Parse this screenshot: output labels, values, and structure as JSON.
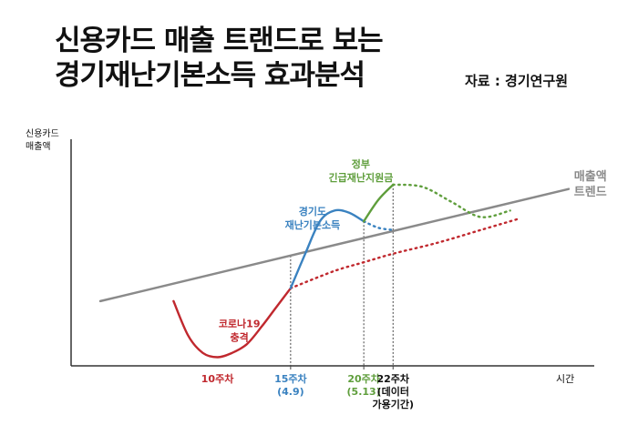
{
  "title_lines": [
    "신용카드 매출 트랜드로 보는",
    "경기재난기본소득 효과분석"
  ],
  "source": "자료 : 경기연구원",
  "colors": {
    "trend": "#8a8a8a",
    "covid": "#c0282e",
    "gyeonggi": "#3a82c0",
    "government": "#5f9e3c",
    "axis": "#333333",
    "text": "#111111"
  },
  "chart_data": {
    "type": "line",
    "title": "",
    "ylabel": [
      "신용카드",
      "매출액"
    ],
    "xlabel": "시간",
    "xlim": [
      0,
      35
    ],
    "ylim": [
      0,
      100
    ],
    "series": [
      {
        "name": "매출액 트렌드",
        "color": "#8a8a8a",
        "style": "solid",
        "x": [
          2,
          34
        ],
        "y": [
          30,
          82
        ]
      },
      {
        "name": "",
        "color": "#c0282e",
        "style": "solid",
        "x": [
          7,
          8,
          9,
          10,
          11,
          12,
          13,
          14,
          15
        ],
        "y": [
          30,
          14,
          6,
          4,
          6,
          10,
          18,
          27,
          36
        ]
      },
      {
        "name": "",
        "color": "#c0282e",
        "style": "dotted",
        "x": [
          15,
          18,
          20,
          22,
          25,
          28,
          30.5
        ],
        "y": [
          36,
          44,
          48,
          52,
          57,
          63,
          68
        ]
      },
      {
        "name": "",
        "color": "#3a82c0",
        "style": "solid",
        "x": [
          15,
          16,
          17,
          18,
          19,
          20
        ],
        "y": [
          36,
          52,
          67,
          72,
          71,
          67
        ]
      },
      {
        "name": "",
        "color": "#3a82c0",
        "style": "dotted",
        "x": [
          20,
          21,
          22
        ],
        "y": [
          67,
          64,
          63
        ]
      },
      {
        "name": "",
        "color": "#5f9e3c",
        "style": "solid",
        "x": [
          20,
          21,
          22
        ],
        "y": [
          67,
          77,
          84
        ]
      },
      {
        "name": "",
        "color": "#5f9e3c",
        "style": "dotted",
        "x": [
          22,
          24,
          26,
          28,
          30
        ],
        "y": [
          84,
          83,
          76,
          69,
          72
        ]
      }
    ],
    "markers": [
      {
        "x": 10,
        "label": [
          "10주차"
        ],
        "color": "#c0282e"
      },
      {
        "x": 15,
        "label": [
          "15주차",
          "(4.9)"
        ],
        "color": "#3a82c0"
      },
      {
        "x": 20,
        "label": [
          "20주차",
          "(5.13)"
        ],
        "color": "#5f9e3c"
      },
      {
        "x": 22,
        "label": [
          "22주차",
          "(데이터",
          "가용기간)"
        ],
        "color": "#111111"
      }
    ],
    "annotations": [
      {
        "text": [
          "코로나19",
          "충격"
        ],
        "color": "#c0282e",
        "x": 11.5,
        "y": 18
      },
      {
        "text": [
          "경기도",
          "재난기본소득"
        ],
        "color": "#3a82c0",
        "x": 16.5,
        "y": 70
      },
      {
        "text": [
          "정부",
          "긴급재난지원금"
        ],
        "color": "#5f9e3c",
        "x": 19.8,
        "y": 92
      },
      {
        "text": [
          "매출액",
          "트렌드"
        ],
        "color": "#8a8a8a",
        "x": 36.6,
        "y": 86
      }
    ]
  }
}
